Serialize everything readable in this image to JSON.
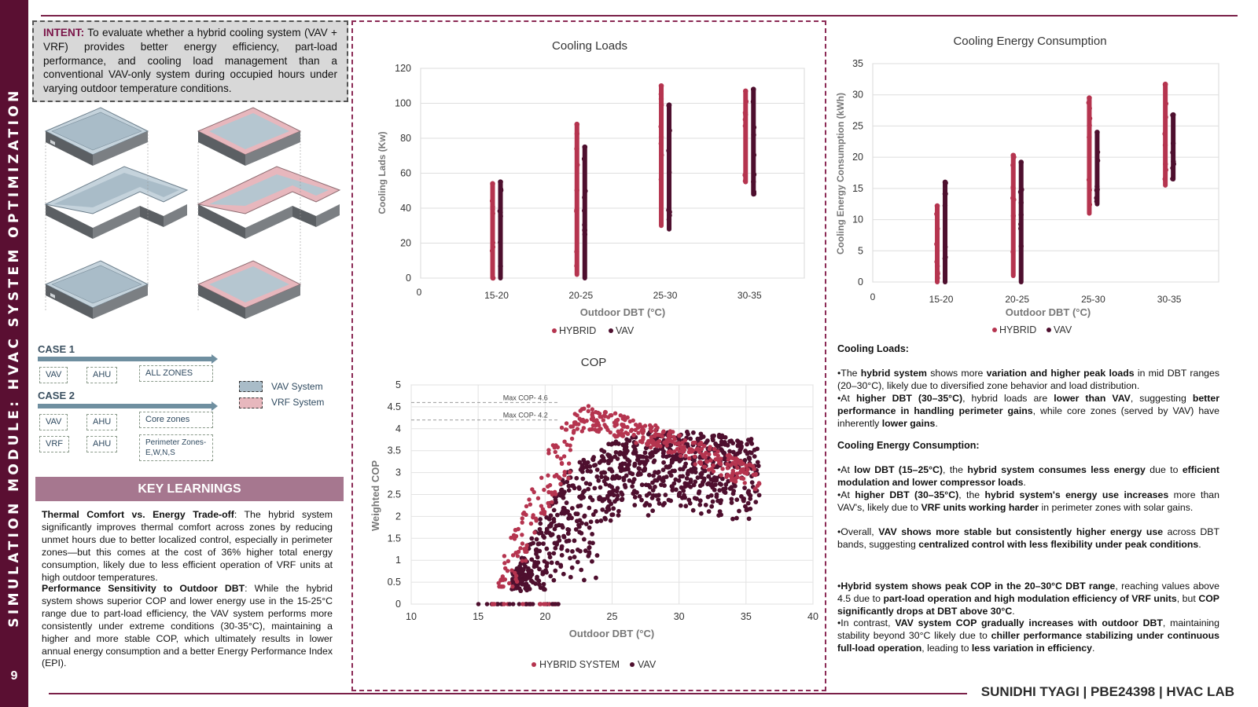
{
  "sidebar": {
    "title": "SIMULATION MODULE: HVAC SYSTEM OPTIMIZATION",
    "page_number": "9"
  },
  "footer": {
    "credit": "SUNIDHI TYAGI | PBE24398 | HVAC LAB"
  },
  "intent": {
    "label": "INTENT:",
    "text": "To evaluate whether a hybrid cooling system (VAV + VRF) provides better energy efficiency, part-load performance, and cooling load management than a conventional VAV-only system during occupied hours under varying outdoor temperature conditions."
  },
  "cases": {
    "case1": {
      "label": "CASE 1",
      "tags": [
        "VAV",
        "AHU",
        "ALL ZONES"
      ]
    },
    "case2": {
      "label": "CASE 2",
      "tags": [
        "VAV",
        "AHU",
        "Core zones",
        "VRF",
        "AHU",
        "Perimeter Zones- E,W,N,S"
      ]
    }
  },
  "system_legend": {
    "vav": "VAV System",
    "vrf": "VRF System"
  },
  "key_learnings": {
    "title": "KEY LEARNINGS",
    "p1_bold": "Thermal Comfort vs. Energy Trade-off",
    "p1_text": ": The hybrid system significantly improves thermal comfort across zones by reducing unmet hours due to better localized control, especially in perimeter zones—but this comes at the cost of 36% higher total energy consumption, likely due to less efficient operation of VRF units at high outdoor temperatures.",
    "p2_bold": "Performance Sensitivity to Outdoor DBT",
    "p2_text": ": While the hybrid system shows superior COP and lower energy use in the 15-25°C range due to part-load efficiency, the VAV system performs more consistently under extreme conditions (30-35°C), maintaining a higher and more stable COP, which ultimately results in lower annual energy consumption and a better Energy Performance Index (EPI)."
  },
  "colors": {
    "hybrid": "#b5344f",
    "vav": "#4e0f2e",
    "accent": "#7a2048"
  },
  "charts": {
    "cooling_loads": {
      "title": "Cooling Loads",
      "xlabel": "Outdoor DBT (°C)",
      "ylabel": "Cooling Lads (Kw)",
      "yticks": [
        "0",
        "20",
        "40",
        "60",
        "80",
        "100",
        "120"
      ],
      "origin_x": "0",
      "legend": [
        "HYBRID",
        "VAV"
      ]
    },
    "energy": {
      "title": "Cooling Energy Consumption",
      "xlabel": "Outdoor DBT (°C)",
      "ylabel": "Cooling Energy Consumption (kWh)",
      "yticks": [
        "0",
        "5",
        "10",
        "15",
        "20",
        "25",
        "30",
        "35"
      ],
      "origin_x": "0",
      "legend": [
        "HYBRID",
        "VAV"
      ]
    },
    "cop": {
      "title": "COP",
      "xlabel": "Outdoor DBT (°C)",
      "ylabel": "Weighted COP",
      "yticks": [
        "0",
        "0.5",
        "1",
        "1.5",
        "2",
        "2.5",
        "3",
        "3.5",
        "4",
        "4.5",
        "5"
      ],
      "xticks": [
        "10",
        "15",
        "20",
        "25",
        "30",
        "35",
        "40"
      ],
      "annotations": [
        "Max COP- 4.6",
        "Max COP- 4.2"
      ],
      "legend": [
        "HYBRID SYSTEM",
        "VAV"
      ]
    }
  },
  "chart_data": [
    {
      "type": "scatter",
      "title": "Cooling Loads",
      "xlabel": "Outdoor DBT (°C)",
      "ylabel": "Cooling Lads (Kw)",
      "categories": [
        "15-20",
        "20-25",
        "25-30",
        "30-35"
      ],
      "ylim": [
        0,
        120
      ],
      "series": [
        {
          "name": "HYBRID",
          "ranges": [
            [
              0,
              54
            ],
            [
              2,
              88
            ],
            [
              30,
              110
            ],
            [
              55,
              107
            ]
          ]
        },
        {
          "name": "VAV",
          "ranges": [
            [
              0,
              55
            ],
            [
              0,
              75
            ],
            [
              28,
              99
            ],
            [
              48,
              108
            ]
          ]
        }
      ]
    },
    {
      "type": "scatter",
      "title": "Cooling Energy Consumption",
      "xlabel": "Outdoor DBT (°C)",
      "ylabel": "Cooling Energy Consumption (kWh)",
      "categories": [
        "15-20",
        "20-25",
        "25-30",
        "30-35"
      ],
      "ylim": [
        0,
        35
      ],
      "series": [
        {
          "name": "HYBRID",
          "ranges": [
            [
              0,
              12.2
            ],
            [
              1,
              20.3
            ],
            [
              11,
              29.5
            ],
            [
              15.5,
              31.7
            ]
          ]
        },
        {
          "name": "VAV",
          "ranges": [
            [
              0,
              16
            ],
            [
              0,
              19.2
            ],
            [
              12.5,
              24
            ],
            [
              16.5,
              26.8
            ]
          ]
        }
      ]
    },
    {
      "type": "scatter",
      "title": "COP",
      "xlabel": "Outdoor DBT (°C)",
      "ylabel": "Weighted COP",
      "xlim": [
        10,
        40
      ],
      "ylim": [
        0,
        5
      ],
      "series": [
        {
          "name": "HYBRID SYSTEM",
          "envelope": [
            [
              15,
              0
            ],
            [
              17,
              1.2
            ],
            [
              19,
              2.7
            ],
            [
              21,
              4.0
            ],
            [
              23,
              4.55
            ],
            [
              26,
              4.3
            ],
            [
              30,
              3.9
            ],
            [
              33,
              3.5
            ],
            [
              36,
              3.1
            ]
          ],
          "max_cop": 4.6
        },
        {
          "name": "VAV",
          "envelope": [
            [
              15,
              0
            ],
            [
              18,
              0.9
            ],
            [
              20,
              2.2
            ],
            [
              22,
              3.2
            ],
            [
              25,
              3.7
            ],
            [
              28,
              4.0
            ],
            [
              32,
              3.9
            ],
            [
              36,
              3.75
            ]
          ],
          "max_cop": 4.2
        }
      ]
    }
  ],
  "analysis": {
    "loads_head": "Cooling Loads:",
    "loads_p1": [
      "•The ",
      "hybrid system",
      " shows more ",
      "variation and higher peak loads",
      " in mid DBT ranges (20–30°C), likely due to diversified zone behavior and load distribution."
    ],
    "loads_p2": [
      "•At ",
      "higher DBT (30–35°C)",
      ", hybrid loads are ",
      "lower than VAV",
      ", suggesting ",
      "better performance in handling perimeter gains",
      ", while core zones (served by VAV) have inherently ",
      "lower gains",
      "."
    ],
    "energy_head": "Cooling Energy Consumption:",
    "energy_p1": [
      "•At ",
      "low DBT (15–25°C)",
      ", the ",
      "hybrid system consumes less energy",
      " due to ",
      "efficient modulation and lower compressor loads",
      "."
    ],
    "energy_p2": [
      "•At ",
      "higher DBT (30–35°C)",
      ", the ",
      "hybrid system's energy use increases",
      " more than VAV's, likely due to ",
      "VRF units working harder",
      " in perimeter zones with solar gains."
    ],
    "energy_p3": [
      "•Overall, ",
      "VAV shows more stable but consistently higher energy use",
      " across DBT bands, suggesting ",
      "centralized control with less flexibility under peak conditions",
      "."
    ],
    "cop_p1": [
      "•",
      "Hybrid system shows peak COP in the 20–30°C DBT range",
      ", reaching values above 4.5 due to ",
      "part-load operation and high modulation efficiency of VRF units",
      ", but ",
      "COP significantly drops at DBT above 30°C",
      "."
    ],
    "cop_p2": [
      "•In contrast, ",
      "VAV system COP gradually increases with outdoor DBT",
      ", maintaining stability beyond 30°C likely due to ",
      "chiller performance stabilizing under continuous full-load operation",
      ", leading to ",
      "less variation in efficiency",
      "."
    ]
  }
}
